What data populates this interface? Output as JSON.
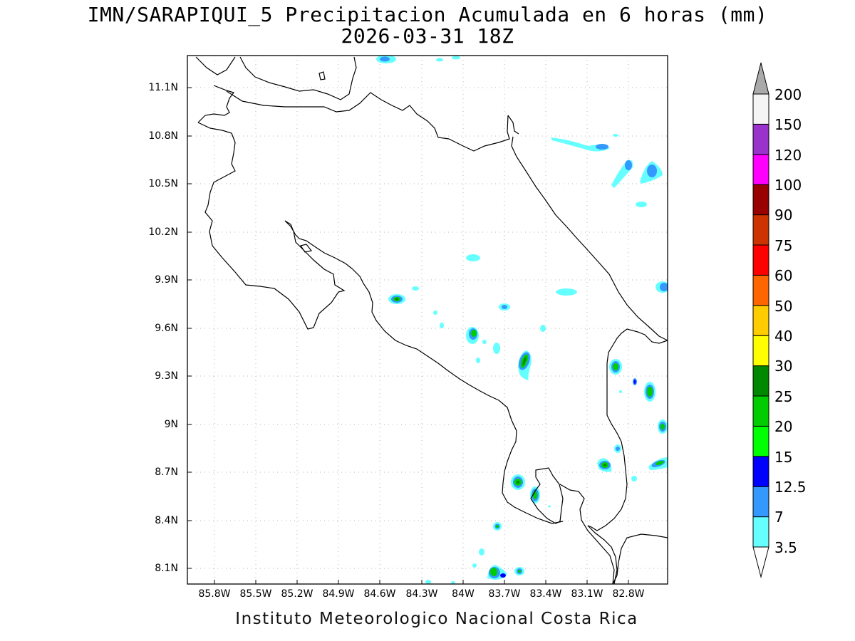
{
  "title": {
    "line1": "IMN/SARAPIQUI_5 Precipitacion Acumulada en 6 horas (mm)",
    "line2": "2026-03-31 18Z"
  },
  "footer": "Instituto Meteorologico Nacional Costa Rica",
  "axes": {
    "lat_labels": [
      "11.1N",
      "10.8N",
      "10.5N",
      "10.2N",
      "9.9N",
      "9.6N",
      "9.3N",
      "9N",
      "8.7N",
      "8.4N",
      "8.1N"
    ],
    "lon_labels": [
      "85.8W",
      "85.5W",
      "85.2W",
      "84.9W",
      "84.6W",
      "84.3W",
      "84W",
      "83.7W",
      "83.4W",
      "83.1W",
      "82.8W"
    ]
  },
  "colorbar": {
    "levels": [
      "3.5",
      "7",
      "12.5",
      "15",
      "20",
      "25",
      "30",
      "40",
      "50",
      "60",
      "75",
      "90",
      "100",
      "120",
      "150",
      "200"
    ],
    "colors": [
      "#66ffff",
      "#3399ff",
      "#0000ff",
      "#00ff00",
      "#00cc00",
      "#008800",
      "#ffff00",
      "#ffcc00",
      "#ff6600",
      "#ff0000",
      "#cc3300",
      "#990000",
      "#ff00ff",
      "#9933cc",
      "#f5f5f5",
      "#aaaaaa"
    ]
  }
}
